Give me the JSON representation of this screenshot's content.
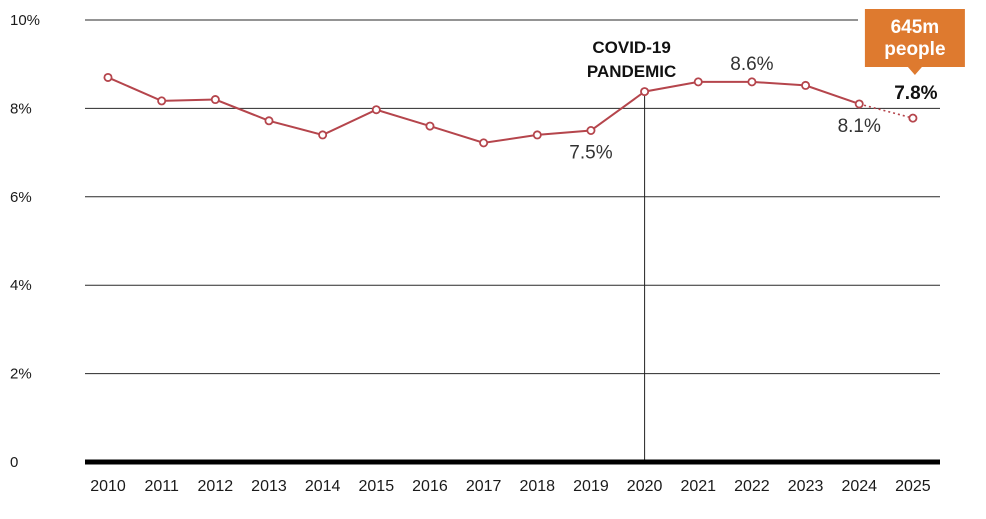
{
  "chart_data": {
    "type": "line",
    "x": [
      "2010",
      "2011",
      "2012",
      "2013",
      "2014",
      "2015",
      "2016",
      "2017",
      "2018",
      "2019",
      "2020",
      "2021",
      "2022",
      "2023",
      "2024",
      "2025"
    ],
    "series": [
      {
        "values": [
          8.7,
          8.17,
          8.2,
          7.72,
          7.4,
          7.97,
          7.6,
          7.22,
          7.4,
          7.5,
          8.38,
          8.6,
          8.6,
          8.52,
          8.1,
          7.78
        ],
        "color": "#b5454c",
        "projected_from_index": 14
      }
    ],
    "yticks": [
      "0",
      "2%",
      "4%",
      "6%",
      "8%",
      "10%"
    ],
    "ylim": [
      0,
      10
    ],
    "grid": true,
    "point_labels": [
      {
        "index": 9,
        "text": "7.5%",
        "position": "below"
      },
      {
        "index": 12,
        "text": "8.6%",
        "position": "above"
      },
      {
        "index": 14,
        "text": "8.1%",
        "position": "below"
      },
      {
        "index": 15,
        "text": "7.8%",
        "position": "above",
        "bold": true
      }
    ],
    "event": {
      "index": 10,
      "line1": "COVID-19",
      "line2": "PANDEMIC"
    },
    "callout": {
      "index": 15,
      "line1": "645m",
      "line2": "people",
      "color": "#de7a2f"
    }
  }
}
